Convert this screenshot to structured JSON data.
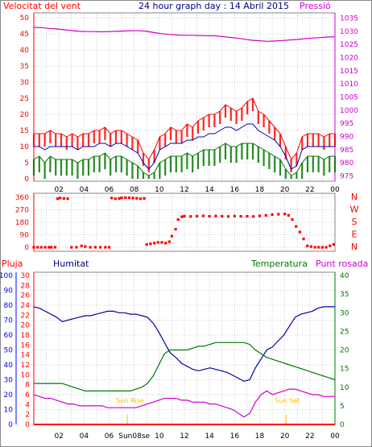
{
  "title": "24 hour graph day : 14 Abril 2015",
  "colors": {
    "red": "#ff0000",
    "blue": "#0000aa",
    "green": "#007700",
    "magenta": "#cc00cc",
    "grid": "#a8a8a8",
    "orange": "#ffbb00"
  },
  "x_tick_labels": [
    "02",
    "04",
    "06",
    "08",
    "10",
    "12",
    "14",
    "16",
    "18",
    "20",
    "22",
    "00"
  ],
  "bottom_x_tick_labels": [
    "02",
    "04",
    "06",
    "Sun08se",
    "10",
    "12",
    "14",
    "16",
    "18",
    "20",
    "22",
    "00"
  ],
  "chart_data": [
    {
      "type": "line",
      "name": "wind-and-pressure",
      "left_label": "Velocitat del vent",
      "right_label": "Pressió",
      "y_left_ticks": [
        0,
        5,
        10,
        15,
        20,
        25,
        30,
        35,
        40,
        45,
        50
      ],
      "y_left_range": [
        0,
        50
      ],
      "y_right_ticks": [
        975,
        980,
        985,
        990,
        995,
        1000,
        1005,
        1010,
        1015,
        1020,
        1025,
        1030,
        1035
      ],
      "y_right_range": [
        973,
        1037
      ],
      "x_hours_range": [
        0,
        24
      ],
      "series": [
        {
          "color": "red",
          "axis": "left",
          "style": "gust",
          "values": [
            14,
            14,
            14,
            15,
            14,
            14,
            13,
            14,
            13,
            14,
            14,
            15,
            15,
            16,
            14,
            15,
            15,
            14,
            13,
            12,
            8,
            6,
            9,
            13,
            14,
            16,
            15,
            15,
            17,
            16,
            18,
            19,
            20,
            20,
            21,
            23,
            22,
            21,
            22,
            24,
            25,
            21,
            20,
            18,
            16,
            14,
            10,
            6,
            8,
            13,
            14,
            14,
            14,
            13,
            14,
            14
          ]
        },
        {
          "color": "blue",
          "axis": "left",
          "values": [
            10,
            10,
            9,
            10,
            10,
            10,
            10,
            10,
            9,
            10,
            10,
            10,
            11,
            11,
            10,
            11,
            11,
            10,
            9,
            8,
            5,
            3,
            5,
            9,
            10,
            11,
            11,
            11,
            12,
            12,
            13,
            13,
            14,
            14,
            15,
            16,
            16,
            15,
            16,
            17,
            17,
            15,
            14,
            13,
            12,
            10,
            7,
            3,
            4,
            9,
            10,
            10,
            10,
            10,
            10,
            10
          ]
        },
        {
          "color": "green",
          "axis": "left",
          "style": "gust",
          "values": [
            6,
            7,
            5,
            7,
            6,
            6,
            6,
            6,
            5,
            6,
            6,
            7,
            7,
            8,
            6,
            7,
            7,
            6,
            5,
            4,
            2,
            1,
            2,
            5,
            6,
            7,
            7,
            7,
            8,
            7,
            8,
            9,
            9,
            9,
            10,
            11,
            10,
            10,
            11,
            11,
            11,
            10,
            9,
            8,
            7,
            6,
            3,
            1,
            2,
            5,
            7,
            7,
            7,
            6,
            7,
            7
          ]
        },
        {
          "color": "magenta",
          "axis": "right",
          "values": [
            1031.5,
            1031.4,
            1031.1,
            1030.9,
            1030.6,
            1030.3,
            1030.0,
            1029.9,
            1029.9,
            1029.8,
            1029.9,
            1030.0,
            1030.1,
            1030.2,
            1030.2,
            1030.0,
            1029.5,
            1029.1,
            1028.8,
            1028.6,
            1028.5,
            1028.5,
            1028.4,
            1028.3,
            1028.3,
            1028.0,
            1027.7,
            1027.4,
            1027.0,
            1026.6,
            1026.4,
            1026.2,
            1026.3,
            1026.5,
            1026.7,
            1026.9,
            1027.2,
            1027.4,
            1027.6,
            1027.8,
            1027.9
          ]
        }
      ]
    },
    {
      "type": "scatter",
      "name": "wind-direction",
      "y_ticks": [
        0,
        90,
        180,
        270,
        360
      ],
      "y_range": [
        0,
        360
      ],
      "right_labels": [
        "N",
        "W",
        "S",
        "E",
        "N"
      ],
      "x_hours_range": [
        0,
        24
      ],
      "series": [
        {
          "color": "red",
          "x": [
            0,
            0.3,
            0.6,
            0.9,
            1.2,
            1.4,
            1.7,
            1.9,
            2.1,
            2.4,
            2.7,
            3.0,
            3.4,
            3.8,
            4.1,
            4.5,
            4.9,
            5.3,
            5.7,
            6.0,
            6.2,
            6.5,
            6.8,
            7.0,
            7.3,
            7.6,
            7.9,
            8.2,
            8.5,
            8.8,
            9.0,
            9.3,
            9.6,
            9.9,
            10.2,
            10.5,
            10.8,
            11.0,
            11.3,
            11.5,
            11.8,
            12.0,
            12.5,
            13.0,
            13.5,
            14.0,
            14.5,
            15.0,
            15.5,
            16.0,
            16.5,
            17.0,
            17.5,
            18.0,
            18.5,
            19.0,
            19.5,
            20.0,
            20.3,
            20.6,
            20.9,
            21.2,
            21.5,
            21.8,
            22.1,
            22.4,
            22.7,
            23.0,
            23.3,
            23.6,
            23.9
          ],
          "y": [
            0,
            0,
            0,
            0,
            0,
            0,
            0,
            350,
            355,
            352,
            350,
            0,
            0,
            10,
            5,
            0,
            0,
            0,
            0,
            0,
            355,
            350,
            352,
            356,
            358,
            357,
            355,
            353,
            350,
            352,
            20,
            25,
            30,
            35,
            35,
            30,
            40,
            80,
            130,
            200,
            220,
            225,
            222,
            224,
            226,
            223,
            225,
            224,
            222,
            225,
            223,
            224,
            222,
            226,
            230,
            235,
            238,
            240,
            230,
            200,
            150,
            110,
            60,
            10,
            5,
            0,
            0,
            0,
            0,
            10,
            20
          ]
        }
      ]
    },
    {
      "type": "line",
      "name": "humidity-temperature-rain-dewpoint",
      "labels": {
        "rain": "Pluja",
        "humidity": "Humitat",
        "temperature": "Temperatura",
        "dewpoint": "Punt rosada"
      },
      "y_humidity_ticks": [
        0,
        10,
        20,
        30,
        40,
        50,
        60,
        70,
        80,
        90,
        100
      ],
      "y_humidity_range": [
        0,
        100
      ],
      "y_rain_ticks": [
        0,
        2,
        4,
        6,
        8,
        10,
        12,
        14,
        16,
        18,
        20,
        22,
        24,
        26,
        28,
        30
      ],
      "y_rain_range": [
        0,
        30
      ],
      "y_temp_ticks": [
        0,
        5,
        10,
        15,
        20,
        25,
        30,
        35,
        40
      ],
      "y_temp_range": [
        0,
        40
      ],
      "x_hours_range": [
        0,
        24
      ],
      "annotations": {
        "sunrise": "Sun Rise",
        "sunset": "Sun Set"
      },
      "series": [
        {
          "key": "humidity",
          "color": "blue",
          "axis": "humidity",
          "values": [
            79,
            78,
            76,
            74,
            72,
            69,
            70,
            71,
            72,
            73,
            73,
            74,
            75,
            76,
            76,
            75,
            75,
            74,
            74,
            73,
            72,
            68,
            62,
            55,
            48,
            45,
            41,
            39,
            37,
            36,
            37,
            38,
            37,
            36,
            35,
            33,
            31,
            29,
            30,
            38,
            44,
            50,
            52,
            56,
            60,
            66,
            72,
            74,
            75,
            76,
            78,
            79,
            79,
            79
          ]
        },
        {
          "key": "temperature",
          "color": "green",
          "axis": "temp",
          "values": [
            11,
            11,
            11,
            11,
            11,
            11,
            10.5,
            10,
            9.5,
            9,
            9,
            9,
            9,
            9,
            9,
            9,
            9,
            9,
            9.5,
            10,
            11,
            13,
            16,
            19,
            20,
            20,
            20,
            20,
            20.5,
            21,
            21,
            21.5,
            22,
            22,
            22,
            22,
            22,
            22,
            21.5,
            20,
            19,
            18,
            17.5,
            17,
            16.5,
            16,
            15.5,
            15,
            14.5,
            14,
            13.5,
            13,
            12.5,
            12
          ]
        },
        {
          "key": "dewpoint",
          "color": "magenta",
          "axis": "temp",
          "values": [
            8,
            7.5,
            7,
            7,
            6.5,
            6,
            5.5,
            5.5,
            5,
            5,
            5,
            5,
            5,
            4.5,
            4.5,
            4.5,
            4.5,
            4.5,
            4.5,
            5,
            5.5,
            6,
            6.5,
            7,
            7,
            7,
            6.5,
            6.5,
            6,
            6,
            6,
            5.5,
            5.5,
            5,
            4.5,
            4,
            3,
            2,
            3,
            6,
            8,
            9,
            8,
            8.5,
            9,
            9.5,
            9.5,
            9,
            8.5,
            8,
            8,
            7.5,
            7.5,
            7.5
          ]
        },
        {
          "key": "rain",
          "color": "red",
          "axis": "rain",
          "values": [
            0,
            0,
            0,
            0,
            0,
            0,
            0,
            0,
            0,
            0,
            0,
            0,
            0,
            0,
            0,
            0,
            0,
            0,
            0,
            0,
            0,
            0,
            0,
            0,
            0
          ]
        }
      ]
    }
  ]
}
